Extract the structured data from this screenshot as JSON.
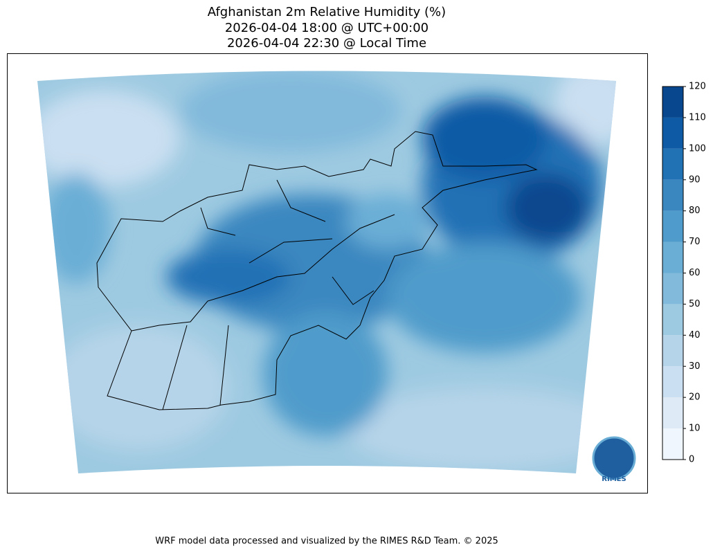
{
  "header": {
    "title_lines": [
      "Afghanistan 2m Relative Humidity (%)",
      "2026-04-04 18:00 @ UTC+00:00",
      "2026-04-04 22:30 @ Local Time"
    ]
  },
  "colorbar": {
    "lim": [
      0,
      120
    ],
    "ticks": [
      0,
      10,
      20,
      30,
      40,
      50,
      60,
      70,
      80,
      90,
      100,
      110,
      120
    ],
    "colors": [
      "#f0f6fd",
      "#deebf7",
      "#cadff1",
      "#b6d4e9",
      "#9ecae1",
      "#82badb",
      "#6aaed6",
      "#4f9bcb",
      "#3a87c0",
      "#2171b5",
      "#0f5aa5",
      "#08468e"
    ]
  },
  "logo": {
    "text": "RIMES"
  },
  "footer": {
    "text": "WRF model data processed and visualized by the RIMES R&D Team. © 2025"
  }
}
